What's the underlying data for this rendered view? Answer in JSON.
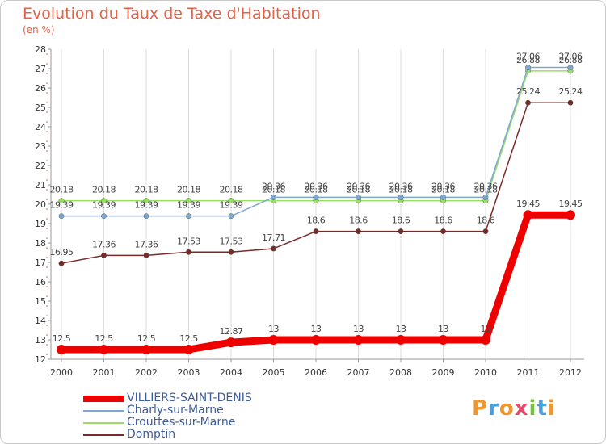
{
  "header": {
    "title": "Evolution du Taux de Taxe d'Habitation",
    "subtitle": "(en %)"
  },
  "logo": {
    "text": "Proxiti"
  },
  "chart_data": {
    "type": "line",
    "title": "Evolution du Taux de Taxe d'Habitation",
    "subtitle": "(en %)",
    "xlabel": "",
    "ylabel": "",
    "x": [
      "2000",
      "2001",
      "2002",
      "2003",
      "2004",
      "2005",
      "2006",
      "2007",
      "2008",
      "2009",
      "2010",
      "2011",
      "2012"
    ],
    "ylim": [
      12,
      28
    ],
    "y_ticks": [
      "12",
      "13",
      "14",
      "15",
      "16",
      "17",
      "18",
      "19",
      "20",
      "21",
      "22",
      "23",
      "24",
      "25",
      "26",
      "27",
      "28"
    ],
    "grid": "vertical",
    "legend_position": "bottom-left",
    "series": [
      {
        "name": "VILLIERS-SAINT-DENIS",
        "color": "#ee0000",
        "values": [
          12.5,
          12.5,
          12.5,
          12.5,
          12.87,
          13,
          13,
          13,
          13,
          13,
          13,
          19.45,
          19.45
        ],
        "labels": [
          "12.5",
          "12.5",
          "12.5",
          "12.5",
          "12.87",
          "13",
          "13",
          "13",
          "13",
          "13",
          "13",
          "19.45",
          "19.45"
        ]
      },
      {
        "name": "Charly-sur-Marne",
        "color": "#7fa7d4",
        "values": [
          19.39,
          19.39,
          19.39,
          19.39,
          19.39,
          20.36,
          20.36,
          20.36,
          20.36,
          20.36,
          20.36,
          27.06,
          27.06
        ],
        "labels": [
          "19.39",
          "19.39",
          "19.39",
          "19.39",
          "19.39",
          "20.36",
          "20.36",
          "20.36",
          "20.36",
          "20.36",
          "20.36",
          "27.06",
          "27.06"
        ]
      },
      {
        "name": "Crouttes-sur-Marne",
        "color": "#99dd66",
        "values": [
          20.18,
          20.18,
          20.18,
          20.18,
          20.18,
          20.18,
          20.18,
          20.18,
          20.18,
          20.18,
          20.18,
          26.88,
          26.88
        ],
        "labels": [
          "20.18",
          "20.18",
          "20.18",
          "20.18",
          "20.18",
          "20.18",
          "20.18",
          "20.18",
          "20.18",
          "20.18",
          "20.18",
          "26.88",
          "26.88"
        ]
      },
      {
        "name": "Domptin",
        "color": "#7a2a2a",
        "values": [
          16.95,
          17.36,
          17.36,
          17.53,
          17.53,
          17.71,
          18.6,
          18.6,
          18.6,
          18.6,
          18.6,
          25.24,
          25.24
        ],
        "labels": [
          "16.95",
          "17.36",
          "17.36",
          "17.53",
          "17.53",
          "17.71",
          "18.6",
          "18.6",
          "18.6",
          "18.6",
          "18.6",
          "25.24",
          "25.24"
        ]
      }
    ]
  }
}
